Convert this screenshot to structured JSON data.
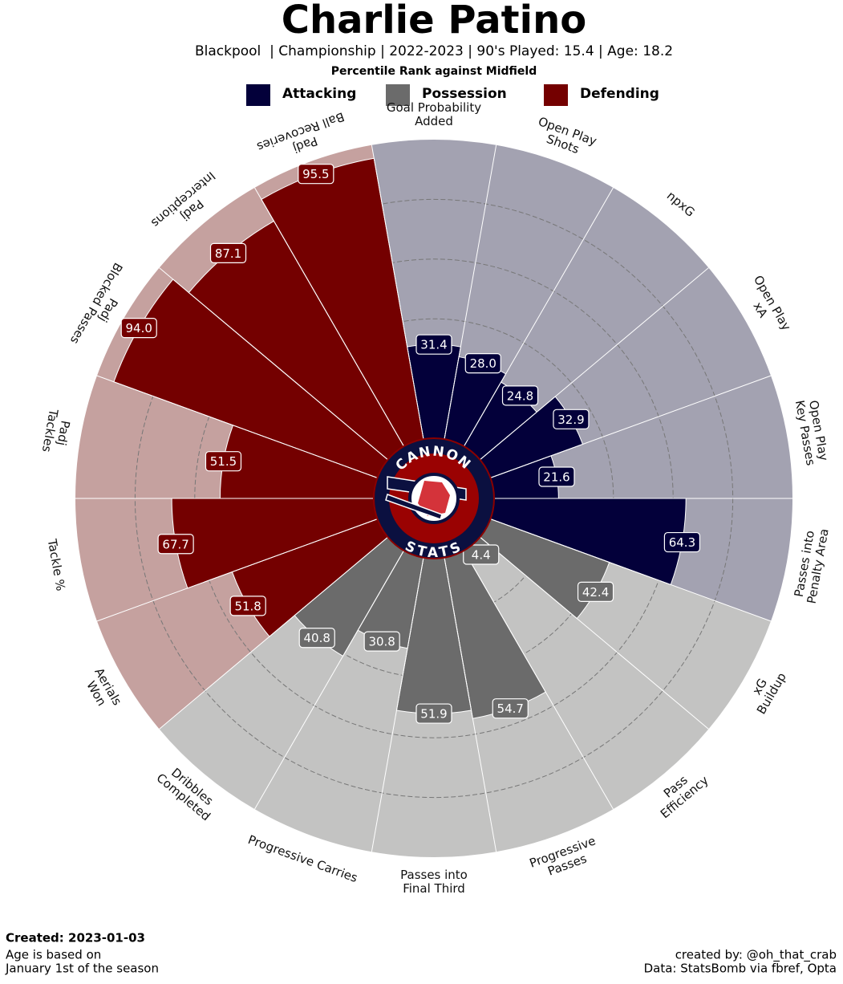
{
  "chart_data": {
    "type": "polar_bar",
    "title": "Charlie Patino",
    "subtitle": "Blackpool  | Championship | 2022-2023 | 90's Played: 15.4 | Age: 18.2",
    "axis_label": "Percentile Rank against Midfield",
    "ylim": [
      0,
      100
    ],
    "yticks": [
      20,
      40,
      60,
      80
    ],
    "grid": true,
    "series": [
      {
        "name": "Attacking",
        "color": "#03003a",
        "bg_color": "#a3a2b1",
        "categories": [
          "Goal Probability\nAdded",
          "Open Play\nShots",
          "npxG",
          "Open Play\nxA",
          "Open Play\nKey Passes",
          "Passes into\nPenalty Area"
        ],
        "values": [
          31.4,
          28.0,
          24.8,
          32.9,
          21.6,
          64.3
        ],
        "value_labels": [
          "31.4",
          "28.0",
          "24.8",
          "32.9",
          "21.6",
          "64.3"
        ]
      },
      {
        "name": "Possession",
        "color": "#6b6b6b",
        "bg_color": "#c3c3c2",
        "categories": [
          "xG\nBuildup",
          "Pass\nEfficiency",
          "Progressive\nPasses",
          "Passes into\nFinal Third",
          "Progressive Carries",
          "Dribbles\nCompleted"
        ],
        "values": [
          42.4,
          4.4,
          54.7,
          51.9,
          30.8,
          40.8
        ],
        "value_labels": [
          "42.4",
          "4.4",
          "54.7",
          "51.9",
          "30.8",
          "40.8"
        ]
      },
      {
        "name": "Defending",
        "color": "#740000",
        "bg_color": "#c5a19f",
        "categories": [
          "Aerials\nWon",
          "Tackle %",
          "Padj\nTackles",
          "Padj\nBlocked Passes",
          "Padj\nInterceptions",
          "Padj\nBall Recoveries"
        ],
        "values": [
          51.8,
          67.7,
          51.5,
          94.0,
          87.1,
          95.5
        ],
        "value_labels": [
          "51.8",
          "67.7",
          "51.5",
          "94.0",
          "87.1",
          "95.5"
        ]
      }
    ],
    "logo": {
      "top": "CANNON",
      "bottom": "STATS"
    },
    "footer": {
      "created": "Created: 2023-01-03",
      "note": [
        "Age is based on",
        "January 1st of the season"
      ],
      "credits": [
        "created by: @oh_that_crab",
        "Data: StatsBomb via fbref, Opta"
      ]
    }
  }
}
